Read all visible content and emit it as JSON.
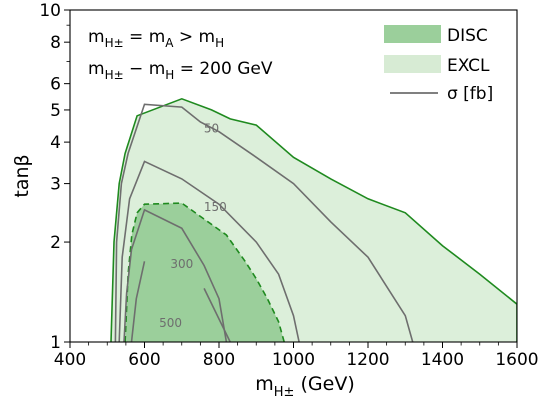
{
  "chart_data": {
    "type": "contour",
    "xlabel": "m_H± (GeV)",
    "xlabel_main": "m",
    "xlabel_sub": "H±",
    "xlabel_unit": " (GeV)",
    "ylabel": "tanβ",
    "xlim": [
      400,
      1600
    ],
    "ylim": [
      1,
      10
    ],
    "yscale": "log",
    "x_ticks": [
      400,
      600,
      800,
      1000,
      1200,
      1400,
      1600
    ],
    "x_tick_labels": [
      "400",
      "600",
      "800",
      "1000",
      "1200",
      "1400",
      "1600"
    ],
    "y_ticks": [
      1,
      2,
      3,
      4,
      5,
      6,
      8,
      10
    ],
    "y_tick_labels": [
      "1",
      "2",
      "3",
      "4",
      "5",
      "6",
      "8",
      "10"
    ],
    "annotations": [
      {
        "text_main": "m",
        "text_sub": "H±",
        "text_rest": " = m",
        "text_sub2": "A",
        "text_rest2": " > m",
        "text_sub3": "H",
        "text": "m_H± = m_A > m_H"
      },
      {
        "text_main": "m",
        "text_sub": "H±",
        "text_rest": " − m",
        "text_sub2": "H",
        "text_rest2": " = 200 GeV",
        "text": "m_H± − m_H = 200 GeV"
      }
    ],
    "legend": {
      "position": "top-right",
      "entries": [
        {
          "label": "DISC",
          "kind": "patch",
          "color": "#9bcf9b"
        },
        {
          "label": "EXCL",
          "kind": "patch",
          "color": "#d7ebd4"
        },
        {
          "label": "σ [fb]",
          "kind": "line",
          "color": "#6e6e6e"
        }
      ]
    },
    "regions": [
      {
        "name": "EXCL",
        "fill": "#dcefda",
        "stroke": "#1f8a1f",
        "dashed": false,
        "points": [
          [
            510,
            1.0
          ],
          [
            518,
            2.0
          ],
          [
            532,
            3.0
          ],
          [
            548,
            3.7
          ],
          [
            580,
            4.8
          ],
          [
            700,
            5.4
          ],
          [
            780,
            5.0
          ],
          [
            830,
            4.7
          ],
          [
            900,
            4.5
          ],
          [
            1000,
            3.6
          ],
          [
            1100,
            3.1
          ],
          [
            1200,
            2.7
          ],
          [
            1300,
            2.45
          ],
          [
            1400,
            1.95
          ],
          [
            1500,
            1.6
          ],
          [
            1600,
            1.3
          ],
          [
            1600,
            1.0
          ]
        ]
      },
      {
        "name": "DISC",
        "fill": "#9bcf9b",
        "stroke": "#1f8a1f",
        "dashed": true,
        "points": [
          [
            548,
            1.0
          ],
          [
            556,
            1.6
          ],
          [
            566,
            2.1
          ],
          [
            580,
            2.45
          ],
          [
            600,
            2.6
          ],
          [
            700,
            2.62
          ],
          [
            820,
            2.1
          ],
          [
            870,
            1.75
          ],
          [
            900,
            1.55
          ],
          [
            930,
            1.35
          ],
          [
            960,
            1.15
          ],
          [
            975,
            1.0
          ]
        ]
      }
    ],
    "contours": [
      {
        "label": "50",
        "label_at": [
          780,
          4.4
        ],
        "points": [
          [
            522,
            1.0
          ],
          [
            525,
            2.0
          ],
          [
            538,
            3.0
          ],
          [
            556,
            3.7
          ],
          [
            600,
            5.2
          ],
          [
            700,
            5.1
          ],
          [
            750,
            4.6
          ],
          [
            800,
            4.3
          ],
          [
            900,
            3.6
          ],
          [
            1000,
            3.0
          ],
          [
            1100,
            2.3
          ],
          [
            1200,
            1.8
          ],
          [
            1300,
            1.2
          ],
          [
            1320,
            1.0
          ]
        ]
      },
      {
        "label": "150",
        "label_at": [
          790,
          2.55
        ],
        "points": [
          [
            532,
            1.0
          ],
          [
            540,
            1.8
          ],
          [
            560,
            2.7
          ],
          [
            600,
            3.5
          ],
          [
            700,
            3.1
          ],
          [
            800,
            2.6
          ],
          [
            900,
            2.0
          ],
          [
            960,
            1.6
          ],
          [
            1000,
            1.2
          ],
          [
            1015,
            1.0
          ]
        ]
      },
      {
        "label": "300",
        "label_at": [
          700,
          1.72
        ],
        "points": [
          [
            545,
            1.0
          ],
          [
            552,
            1.4
          ],
          [
            565,
            1.9
          ],
          [
            600,
            2.5
          ],
          [
            700,
            2.2
          ],
          [
            760,
            1.7
          ],
          [
            800,
            1.35
          ],
          [
            820,
            1.0
          ]
        ]
      },
      {
        "label": "500",
        "label_at": [
          670,
          1.14
        ],
        "points": [
          [
            565,
            1.0
          ],
          [
            578,
            1.35
          ],
          [
            600,
            1.75
          ]
        ]
      },
      {
        "label": "",
        "points": [
          [
            760,
            1.45
          ],
          [
            830,
            1.0
          ]
        ]
      }
    ]
  }
}
